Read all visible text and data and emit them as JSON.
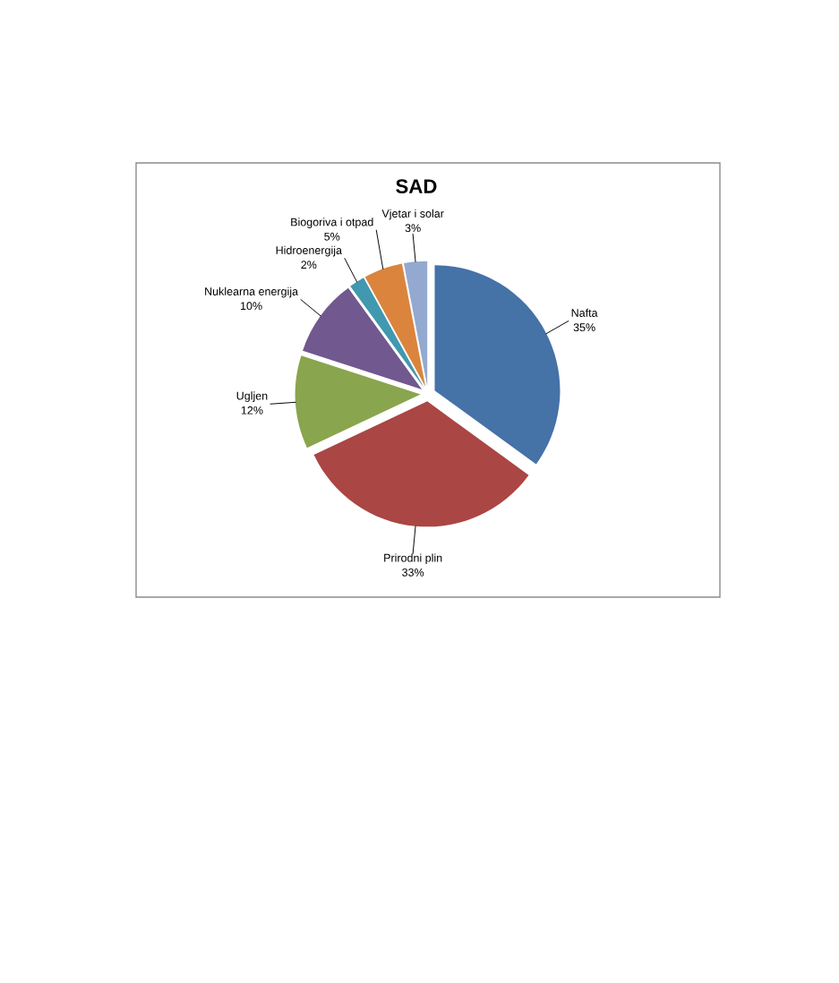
{
  "chart_data": {
    "type": "pie",
    "title": "SAD",
    "categories": [
      "Nafta",
      "Prirodni plin",
      "Ugljen",
      "Nuklearna energija",
      "Hidroenergija",
      "Biogoriva i otpad",
      "Vjetar i solar"
    ],
    "values": [
      35,
      33,
      12,
      10,
      2,
      5,
      3
    ],
    "value_labels": [
      "35%",
      "33%",
      "12%",
      "10%",
      "2%",
      "5%",
      "3%"
    ],
    "colors": [
      "#4572a7",
      "#aa4643",
      "#89a54e",
      "#71588f",
      "#4198af",
      "#db843d",
      "#93a9cf"
    ]
  }
}
